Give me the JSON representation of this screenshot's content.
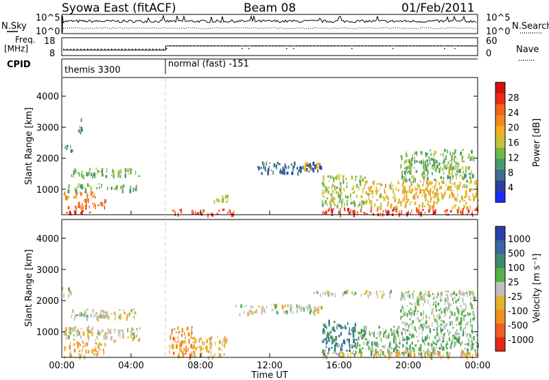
{
  "header": {
    "station": "Syowa East (fitACF)",
    "beam": "Beam 08",
    "date": "01/Feb/2011"
  },
  "sky_panel": {
    "left_label": "N.Sky",
    "left_ticks": [
      "10^5",
      "10^0"
    ],
    "right_label": "N.Search",
    "right_ticks": [
      "10^5",
      "10^0"
    ]
  },
  "freq_panel": {
    "left_label_line1": "Freq.",
    "left_label_line2": "[MHz]",
    "left_ticks": [
      "18",
      "8"
    ],
    "right_label": "Nave",
    "right_ticks": [
      "60",
      "0"
    ]
  },
  "cpid": {
    "label": "CPID",
    "segments": [
      {
        "name": "themis 3300",
        "start_hour": 0,
        "end_hour": 6
      },
      {
        "name": "normal (fast) -151",
        "start_hour": 6,
        "end_hour": 24
      }
    ]
  },
  "x_axis": {
    "label": "Time UT",
    "ticks": [
      "00:00",
      "04:00",
      "08:00",
      "12:00",
      "16:00",
      "20:00",
      "00:00"
    ]
  },
  "colors": {
    "power": [
      "#1a2cff",
      "#2a3fa0",
      "#3d6e8c",
      "#4b9a6e",
      "#72b84a",
      "#c8c23a",
      "#f0b020",
      "#f08a1a",
      "#f0651a",
      "#ee2a18",
      "#d80d10"
    ],
    "velocity": [
      "#2a3fa8",
      "#3b66a0",
      "#3f8a6c",
      "#57b04a",
      "#c0c0c0",
      "#e8b030",
      "#f09020",
      "#f06020",
      "#e42818"
    ]
  },
  "chart_data": [
    {
      "type": "heatmap",
      "title": "",
      "xlabel": "Time UT",
      "ylabel": "Slant Range [km]",
      "xlim_hours": [
        0,
        24
      ],
      "ylim": [
        180,
        4600
      ],
      "y_ticks": [
        "1000",
        "2000",
        "3000",
        "4000"
      ],
      "colorbar_label": "Power [dB]",
      "colorbar_ticks": [
        "4",
        "8",
        "12",
        "16",
        "20",
        "24",
        "28"
      ],
      "colorbar_range": [
        0,
        32
      ],
      "regions": [
        {
          "t0": 0.1,
          "t1": 1.6,
          "r0": 220,
          "r1": 360,
          "v": 28
        },
        {
          "t0": 0.2,
          "t1": 2.5,
          "r0": 430,
          "r1": 700,
          "v": 25
        },
        {
          "t0": 0.1,
          "t1": 2.0,
          "r0": 750,
          "r1": 950,
          "v": 22
        },
        {
          "t0": 0.3,
          "t1": 4.4,
          "r0": 1000,
          "r1": 1200,
          "v": 13
        },
        {
          "t0": 0.5,
          "t1": 4.5,
          "r0": 1450,
          "r1": 1700,
          "v": 11
        },
        {
          "t0": 0.0,
          "t1": 0.6,
          "r0": 2200,
          "r1": 2500,
          "v": 9
        },
        {
          "t0": 0.9,
          "t1": 1.2,
          "r0": 2900,
          "r1": 3300,
          "v": 6
        },
        {
          "t0": 6.2,
          "t1": 10.0,
          "r0": 220,
          "r1": 380,
          "v": 27
        },
        {
          "t0": 8.6,
          "t1": 9.6,
          "r0": 600,
          "r1": 850,
          "v": 17
        },
        {
          "t0": 13.8,
          "t1": 15.2,
          "r0": 1680,
          "r1": 1880,
          "v": 19
        },
        {
          "t0": 11.2,
          "t1": 15.0,
          "r0": 1550,
          "r1": 1900,
          "v": 5
        },
        {
          "t0": 15.0,
          "t1": 24.0,
          "r0": 220,
          "r1": 420,
          "v": 29
        },
        {
          "t0": 15.0,
          "t1": 17.5,
          "r0": 500,
          "r1": 1500,
          "v": 14
        },
        {
          "t0": 17.5,
          "t1": 24.0,
          "r0": 450,
          "r1": 1300,
          "v": 18
        },
        {
          "t0": 19.5,
          "t1": 23.8,
          "r0": 1300,
          "r1": 2300,
          "v": 12
        }
      ]
    },
    {
      "type": "heatmap",
      "title": "",
      "xlabel": "Time UT",
      "ylabel": "Slant Range [km]",
      "xlim_hours": [
        0,
        24
      ],
      "ylim": [
        180,
        4600
      ],
      "y_ticks": [
        "1000",
        "2000",
        "3000",
        "4000"
      ],
      "colorbar_label": "Velocity [m s⁻¹]",
      "colorbar_ticks": [
        "1000",
        "500",
        "100",
        "25",
        "-25",
        "-100",
        "-500",
        "-1000"
      ],
      "colorbar_range": [
        -1250,
        1250
      ],
      "regions": [
        {
          "t0": 0.1,
          "t1": 2.5,
          "r0": 220,
          "r1": 700,
          "v": -400
        },
        {
          "t0": 0.1,
          "t1": 4.5,
          "r0": 750,
          "r1": 1200,
          "v": -80
        },
        {
          "t0": 0.5,
          "t1": 4.5,
          "r0": 1450,
          "r1": 1750,
          "v": 0
        },
        {
          "t0": 0.0,
          "t1": 0.6,
          "r0": 2200,
          "r1": 2500,
          "v": 0
        },
        {
          "t0": 6.2,
          "t1": 7.5,
          "r0": 220,
          "r1": 1200,
          "v": -700
        },
        {
          "t0": 7.5,
          "t1": 9.5,
          "r0": 220,
          "r1": 900,
          "v": -300
        },
        {
          "t0": 10.0,
          "t1": 15.0,
          "r0": 1600,
          "r1": 1900,
          "v": 0
        },
        {
          "t0": 15.0,
          "t1": 17.0,
          "r0": 300,
          "r1": 1400,
          "v": 700
        },
        {
          "t0": 17.0,
          "t1": 24.0,
          "r0": 300,
          "r1": 1200,
          "v": 300
        },
        {
          "t0": 15.0,
          "t1": 24.0,
          "r0": 220,
          "r1": 400,
          "v": -300
        },
        {
          "t0": 19.5,
          "t1": 23.8,
          "r0": 1200,
          "r1": 2300,
          "v": 150
        },
        {
          "t0": 14.5,
          "t1": 24.0,
          "r0": 2200,
          "r1": 2350,
          "v": 0
        }
      ]
    }
  ]
}
